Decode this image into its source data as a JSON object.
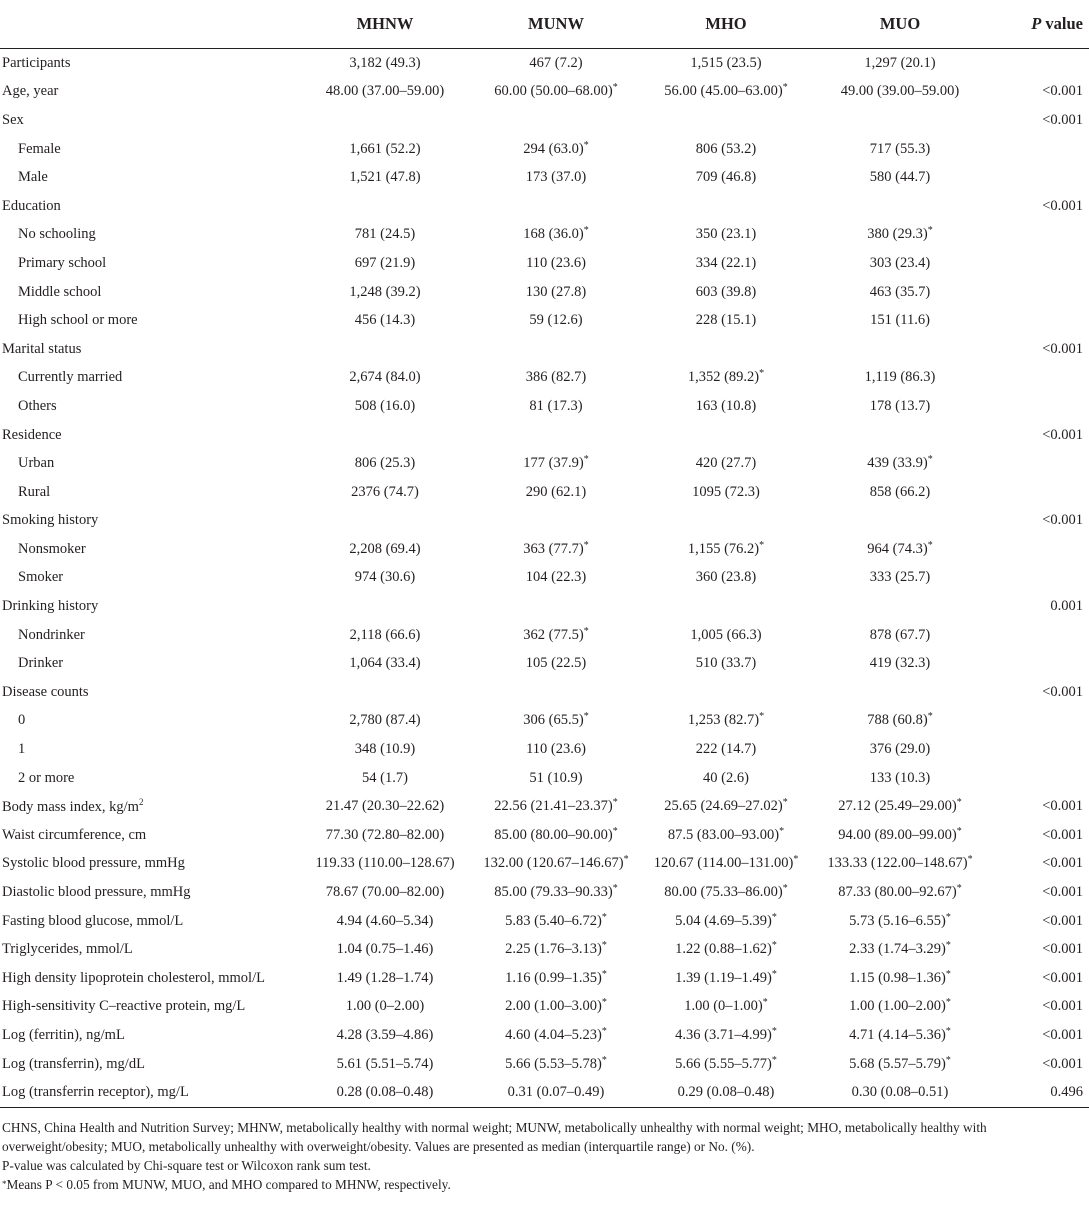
{
  "header": {
    "label": "",
    "cols": [
      "MHNW",
      "MUNW",
      "MHO",
      "MUO"
    ],
    "p_italic": "P",
    "p_rest": " value"
  },
  "rows": [
    {
      "label": "Participants",
      "indent": false,
      "v": [
        "3,182 (49.3)",
        "467 (7.2)",
        "1,515 (23.5)",
        "1,297 (20.1)"
      ],
      "star": [
        false,
        false,
        false,
        false
      ],
      "p": ""
    },
    {
      "label": "Age, year",
      "indent": false,
      "v": [
        "48.00 (37.00–59.00)",
        "60.00 (50.00–68.00)",
        "56.00 (45.00–63.00)",
        "49.00 (39.00–59.00)"
      ],
      "star": [
        false,
        true,
        true,
        false
      ],
      "p": "<0.001"
    },
    {
      "label": "Sex",
      "indent": false,
      "v": [
        "",
        "",
        "",
        ""
      ],
      "star": [
        false,
        false,
        false,
        false
      ],
      "p": "<0.001"
    },
    {
      "label": "Female",
      "indent": true,
      "v": [
        "1,661 (52.2)",
        "294 (63.0)",
        "806 (53.2)",
        "717 (55.3)"
      ],
      "star": [
        false,
        true,
        false,
        false
      ],
      "p": ""
    },
    {
      "label": "Male",
      "indent": true,
      "v": [
        "1,521 (47.8)",
        "173 (37.0)",
        "709 (46.8)",
        "580 (44.7)"
      ],
      "star": [
        false,
        false,
        false,
        false
      ],
      "p": ""
    },
    {
      "label": "Education",
      "indent": false,
      "v": [
        "",
        "",
        "",
        ""
      ],
      "star": [
        false,
        false,
        false,
        false
      ],
      "p": "<0.001"
    },
    {
      "label": "No schooling",
      "indent": true,
      "v": [
        "781 (24.5)",
        "168 (36.0)",
        "350 (23.1)",
        "380 (29.3)"
      ],
      "star": [
        false,
        true,
        false,
        true
      ],
      "p": ""
    },
    {
      "label": "Primary school",
      "indent": true,
      "v": [
        "697 (21.9)",
        "110 (23.6)",
        "334 (22.1)",
        "303 (23.4)"
      ],
      "star": [
        false,
        false,
        false,
        false
      ],
      "p": ""
    },
    {
      "label": "Middle school",
      "indent": true,
      "v": [
        "1,248 (39.2)",
        "130 (27.8)",
        "603 (39.8)",
        "463 (35.7)"
      ],
      "star": [
        false,
        false,
        false,
        false
      ],
      "p": ""
    },
    {
      "label": "High school or more",
      "indent": true,
      "v": [
        "456 (14.3)",
        "59 (12.6)",
        "228 (15.1)",
        "151 (11.6)"
      ],
      "star": [
        false,
        false,
        false,
        false
      ],
      "p": ""
    },
    {
      "label": "Marital status",
      "indent": false,
      "v": [
        "",
        "",
        "",
        ""
      ],
      "star": [
        false,
        false,
        false,
        false
      ],
      "p": "<0.001"
    },
    {
      "label": "Currently married",
      "indent": true,
      "v": [
        "2,674 (84.0)",
        "386 (82.7)",
        "1,352 (89.2)",
        "1,119 (86.3)"
      ],
      "star": [
        false,
        false,
        true,
        false
      ],
      "p": ""
    },
    {
      "label": "Others",
      "indent": true,
      "v": [
        "508 (16.0)",
        "81 (17.3)",
        "163 (10.8)",
        "178 (13.7)"
      ],
      "star": [
        false,
        false,
        false,
        false
      ],
      "p": ""
    },
    {
      "label": "Residence",
      "indent": false,
      "v": [
        "",
        "",
        "",
        ""
      ],
      "star": [
        false,
        false,
        false,
        false
      ],
      "p": "<0.001"
    },
    {
      "label": "Urban",
      "indent": true,
      "v": [
        "806 (25.3)",
        "177 (37.9)",
        "420 (27.7)",
        "439 (33.9)"
      ],
      "star": [
        false,
        true,
        false,
        true
      ],
      "p": ""
    },
    {
      "label": "Rural",
      "indent": true,
      "v": [
        "2376 (74.7)",
        "290 (62.1)",
        "1095 (72.3)",
        "858 (66.2)"
      ],
      "star": [
        false,
        false,
        false,
        false
      ],
      "p": ""
    },
    {
      "label": "Smoking history",
      "indent": false,
      "v": [
        "",
        "",
        "",
        ""
      ],
      "star": [
        false,
        false,
        false,
        false
      ],
      "p": "<0.001"
    },
    {
      "label": "Nonsmoker",
      "indent": true,
      "v": [
        "2,208 (69.4)",
        "363 (77.7)",
        "1,155 (76.2)",
        "964 (74.3)"
      ],
      "star": [
        false,
        true,
        true,
        true
      ],
      "p": ""
    },
    {
      "label": "Smoker",
      "indent": true,
      "v": [
        "974 (30.6)",
        "104 (22.3)",
        "360 (23.8)",
        "333 (25.7)"
      ],
      "star": [
        false,
        false,
        false,
        false
      ],
      "p": ""
    },
    {
      "label": "Drinking history",
      "indent": false,
      "v": [
        "",
        "",
        "",
        ""
      ],
      "star": [
        false,
        false,
        false,
        false
      ],
      "p": "0.001"
    },
    {
      "label": "Nondrinker",
      "indent": true,
      "v": [
        "2,118 (66.6)",
        "362 (77.5)",
        "1,005 (66.3)",
        "878 (67.7)"
      ],
      "star": [
        false,
        true,
        false,
        false
      ],
      "p": ""
    },
    {
      "label": "Drinker",
      "indent": true,
      "v": [
        "1,064 (33.4)",
        "105 (22.5)",
        "510 (33.7)",
        "419 (32.3)"
      ],
      "star": [
        false,
        false,
        false,
        false
      ],
      "p": ""
    },
    {
      "label": "Disease counts",
      "indent": false,
      "v": [
        "",
        "",
        "",
        ""
      ],
      "star": [
        false,
        false,
        false,
        false
      ],
      "p": "<0.001"
    },
    {
      "label": "0",
      "indent": true,
      "v": [
        "2,780 (87.4)",
        "306 (65.5)",
        "1,253 (82.7)",
        "788 (60.8)"
      ],
      "star": [
        false,
        true,
        true,
        true
      ],
      "p": ""
    },
    {
      "label": "1",
      "indent": true,
      "v": [
        "348 (10.9)",
        "110 (23.6)",
        "222 (14.7)",
        "376 (29.0)"
      ],
      "star": [
        false,
        false,
        false,
        false
      ],
      "p": ""
    },
    {
      "label": "2 or more",
      "indent": true,
      "v": [
        "54 (1.7)",
        "51 (10.9)",
        "40 (2.6)",
        "133 (10.3)"
      ],
      "star": [
        false,
        false,
        false,
        false
      ],
      "p": ""
    },
    {
      "label": "Body mass index, kg/m",
      "sup": "2",
      "indent": false,
      "v": [
        "21.47 (20.30–22.62)",
        "22.56 (21.41–23.37)",
        "25.65 (24.69–27.02)",
        "27.12 (25.49–29.00)"
      ],
      "star": [
        false,
        true,
        true,
        true
      ],
      "p": "<0.001"
    },
    {
      "label": "Waist circumference, cm",
      "indent": false,
      "v": [
        "77.30 (72.80–82.00)",
        "85.00 (80.00–90.00)",
        "87.5 (83.00–93.00)",
        "94.00 (89.00–99.00)"
      ],
      "star": [
        false,
        true,
        true,
        true
      ],
      "p": "<0.001"
    },
    {
      "label": "Systolic blood pressure, mmHg",
      "indent": false,
      "v": [
        "119.33 (110.00–128.67)",
        "132.00 (120.67–146.67)",
        "120.67 (114.00–131.00)",
        "133.33 (122.00–148.67)"
      ],
      "star": [
        false,
        true,
        true,
        true
      ],
      "p": "<0.001"
    },
    {
      "label": "Diastolic blood pressure, mmHg",
      "indent": false,
      "v": [
        "78.67 (70.00–82.00)",
        "85.00 (79.33–90.33)",
        "80.00 (75.33–86.00)",
        "87.33 (80.00–92.67)"
      ],
      "star": [
        false,
        true,
        true,
        true
      ],
      "p": "<0.001"
    },
    {
      "label": "Fasting blood glucose, mmol/L",
      "indent": false,
      "v": [
        "4.94 (4.60–5.34)",
        "5.83 (5.40–6.72)",
        "5.04 (4.69–5.39)",
        "5.73 (5.16–6.55)"
      ],
      "star": [
        false,
        true,
        true,
        true
      ],
      "p": "<0.001"
    },
    {
      "label": "Triglycerides, mmol/L",
      "indent": false,
      "v": [
        "1.04 (0.75–1.46)",
        "2.25 (1.76–3.13)",
        "1.22 (0.88–1.62)",
        "2.33 (1.74–3.29)"
      ],
      "star": [
        false,
        true,
        true,
        true
      ],
      "p": "<0.001"
    },
    {
      "label": "High density lipoprotein cholesterol, mmol/L",
      "indent": false,
      "v": [
        "1.49 (1.28–1.74)",
        "1.16 (0.99–1.35)",
        "1.39 (1.19–1.49)",
        "1.15 (0.98–1.36)"
      ],
      "star": [
        false,
        true,
        true,
        true
      ],
      "p": "<0.001"
    },
    {
      "label": "High-sensitivity C–reactive protein, mg/L",
      "indent": false,
      "v": [
        "1.00 (0–2.00)",
        "2.00 (1.00–3.00)",
        "1.00 (0–1.00)",
        "1.00 (1.00–2.00)"
      ],
      "star": [
        false,
        true,
        true,
        true
      ],
      "p": "<0.001"
    },
    {
      "label": "Log (ferritin), ng/mL",
      "indent": false,
      "v": [
        "4.28 (3.59–4.86)",
        "4.60 (4.04–5.23)",
        "4.36 (3.71–4.99)",
        "4.71 (4.14–5.36)"
      ],
      "star": [
        false,
        true,
        true,
        true
      ],
      "p": "<0.001"
    },
    {
      "label": "Log (transferrin), mg/dL",
      "indent": false,
      "v": [
        "5.61 (5.51–5.74)",
        "5.66 (5.53–5.78)",
        "5.66 (5.55–5.77)",
        "5.68 (5.57–5.79)"
      ],
      "star": [
        false,
        true,
        true,
        true
      ],
      "p": "<0.001"
    },
    {
      "label": "Log (transferrin receptor), mg/L",
      "indent": false,
      "v": [
        "0.28 (0.08–0.48)",
        "0.31 (0.07–0.49)",
        "0.29 (0.08–0.48)",
        "0.30 (0.08–0.51)"
      ],
      "star": [
        false,
        false,
        false,
        false
      ],
      "p": "0.496"
    }
  ],
  "star_symbol": "*",
  "footnotes": {
    "abbrev": "CHNS, China Health and Nutrition Survey; MHNW, metabolically healthy with normal weight; MUNW, metabolically unhealthy with normal weight; MHO, metabolically healthy with overweight/obesity; MUO, metabolically unhealthy with overweight/obesity. Values are presented as median (interquartile range) or No. (%).",
    "pvalue": "P-value was calculated by Chi-square test or Wilcoxon rank sum test.",
    "star_symbol": "*",
    "star_note": "Means P < 0.05 from MUNW, MUO, and MHO compared to MHNW, respectively."
  }
}
